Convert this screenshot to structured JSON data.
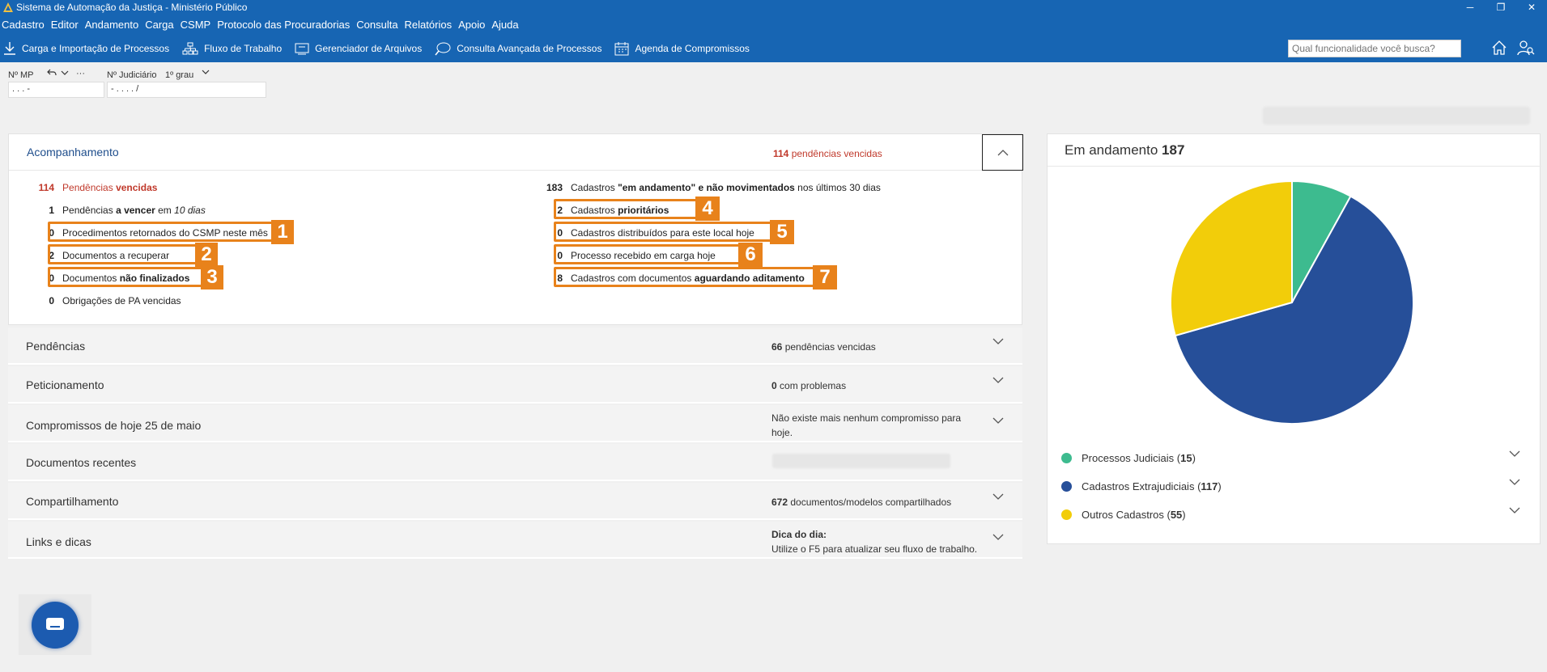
{
  "window": {
    "title": "Sistema de Automação da Justiça - Ministério Público",
    "minimize": "─",
    "maximize": "❐",
    "close": "✕"
  },
  "menu": [
    "Cadastro",
    "Editor",
    "Andamento",
    "Carga",
    "CSMP",
    "Protocolo das Procuradorias",
    "Consulta",
    "Relatórios",
    "Apoio",
    "Ajuda"
  ],
  "toolbar": {
    "items": [
      {
        "label": "Carga e Importação de Processos",
        "icon": "download-icon"
      },
      {
        "label": "Fluxo de Trabalho",
        "icon": "org-chart-icon"
      },
      {
        "label": "Gerenciador de Arquivos",
        "icon": "file-manager-icon"
      },
      {
        "label": "Consulta Avançada de Processos",
        "icon": "chat-search-icon"
      },
      {
        "label": "Agenda de Compromissos",
        "icon": "calendar-icon"
      }
    ],
    "search_placeholder": "Qual funcionalidade você busca?"
  },
  "fields": {
    "mp_label": "Nº MP",
    "mp_value": ". . . -",
    "more": "···",
    "judicial_label": "Nº Judiciário",
    "grau": "1º grau",
    "judicial_value": "- . . . . /"
  },
  "acompanhamento": {
    "title": "Acompanhamento",
    "status_count": "114",
    "status_text": "pendências vencidas",
    "left": [
      {
        "n": "114",
        "pre": "Pendências",
        "bold": "vencidas",
        "post": ""
      },
      {
        "n": "1",
        "pre": "Pendências",
        "bold": "a vencer",
        "post": "em",
        "it": "10 dias"
      },
      {
        "n": "0",
        "pre": "Procedimentos retornados do CSMP neste mês",
        "bold": "",
        "post": ""
      },
      {
        "n": "2",
        "pre": "Documentos a recuperar",
        "bold": "",
        "post": ""
      },
      {
        "n": "0",
        "pre": "Documentos",
        "bold": "não finalizados",
        "post": ""
      },
      {
        "n": "0",
        "pre": "Obrigações de PA vencidas",
        "bold": "",
        "post": ""
      }
    ],
    "right": [
      {
        "n": "183",
        "pre": "Cadastros",
        "bold": "\"em andamento\" e não movimentados",
        "post": "nos últimos 30 dias"
      },
      {
        "n": "2",
        "pre": "Cadastros",
        "bold": "prioritários",
        "post": ""
      },
      {
        "n": "0",
        "pre": "Cadastros distribuídos para este local hoje",
        "bold": "",
        "post": ""
      },
      {
        "n": "0",
        "pre": "Processo recebido em carga hoje",
        "bold": "",
        "post": ""
      },
      {
        "n": "8",
        "pre": "Cadastros com documentos",
        "bold": "aguardando aditamento",
        "post": ""
      }
    ],
    "badges": [
      "1",
      "2",
      "3",
      "4",
      "5",
      "6",
      "7"
    ]
  },
  "sections": [
    {
      "title": "Pendências",
      "status_n": "66",
      "status_text": "pendências vencidas"
    },
    {
      "title": "Peticionamento",
      "status_n": "0",
      "status_text": "com problemas"
    },
    {
      "title": "Compromissos de hoje 25 de maio",
      "status_text": "Não existe mais nenhum compromisso para hoje."
    },
    {
      "title": "Documentos recentes",
      "status_text": ""
    },
    {
      "title": "Compartilhamento",
      "status_n": "672",
      "status_text": "documentos/modelos compartilhados"
    },
    {
      "title": "Links e dicas",
      "status_bold": "Dica do dia:",
      "status_text": "Utilize o F5 para atualizar seu fluxo de trabalho."
    }
  ],
  "em_andamento": {
    "label": "Em andamento",
    "count": "187"
  },
  "chart_data": {
    "type": "pie",
    "total": 187,
    "categories": [
      "Processos Judiciais",
      "Cadastros Extrajudiciais",
      "Outros Cadastros"
    ],
    "values": [
      15,
      117,
      55
    ],
    "colors": [
      "#3dbb8f",
      "#264f99",
      "#f2cd0a"
    ],
    "legend_position": "bottom"
  },
  "legend": [
    {
      "label": "Processos Judiciais",
      "count": "15",
      "color": "#3dbb8f"
    },
    {
      "label": "Cadastros Extrajudiciais",
      "count": "117",
      "color": "#264f99"
    },
    {
      "label": "Outros Cadastros",
      "count": "55",
      "color": "#f2cd0a"
    }
  ],
  "colors": {
    "brand": "#1765b3",
    "accent": "#e8821b",
    "alert": "#c0392b"
  }
}
